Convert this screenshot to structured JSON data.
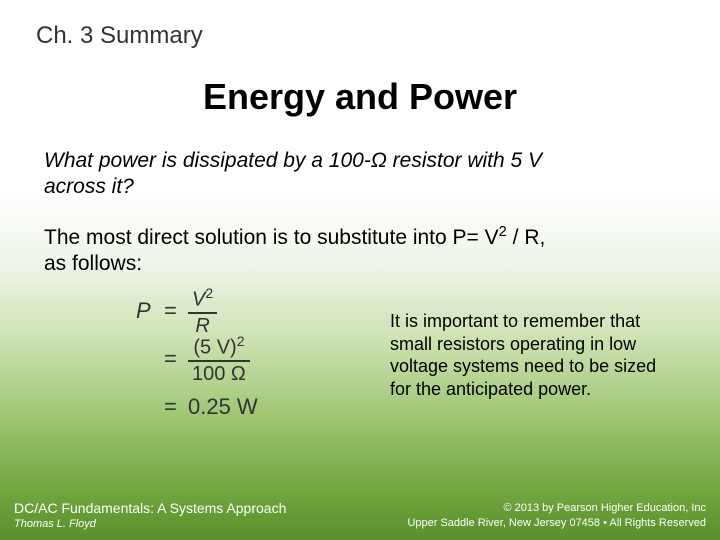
{
  "chapter_label": "Ch. 3 Summary",
  "title": "Energy and Power",
  "question_line1": "What power is dissipated by a 100-Ω resistor with 5 V",
  "question_line2": "across it?",
  "answer_line1": "The most direct solution is to substitute into P= V",
  "answer_sup": "2",
  "answer_line1_tail": " / R,",
  "answer_line2": "as follows:",
  "math": {
    "lhs": "P",
    "row1_num": "V",
    "row1_num_sup": "2",
    "row1_den": "R",
    "row2_num_a": "(5 V)",
    "row2_num_sup": "2",
    "row2_den": "100 Ω",
    "row3_rhs": "0.25 W"
  },
  "note": "It is important to remember that small resistors operating in low voltage systems need to be sized for the anticipated power.",
  "footer": {
    "book": "DC/AC Fundamentals:  A Systems Approach",
    "author": "Thomas L. Floyd",
    "copyright": "© 2013 by Pearson Higher Education, Inc",
    "address": "Upper Saddle River, New Jersey 07458 • All Rights Reserved"
  },
  "colors": {
    "gradient_top": "#ffffff",
    "gradient_bottom": "#5a8f2e",
    "text_primary": "#000000",
    "text_math": "#333333",
    "footer_text": "#ffffff"
  },
  "typography": {
    "chapter_fontsize": 24,
    "title_fontsize": 36,
    "body_fontsize": 21,
    "note_fontsize": 18,
    "math_fontsize": 22,
    "footer_book_fontsize": 14,
    "footer_small_fontsize": 11
  }
}
